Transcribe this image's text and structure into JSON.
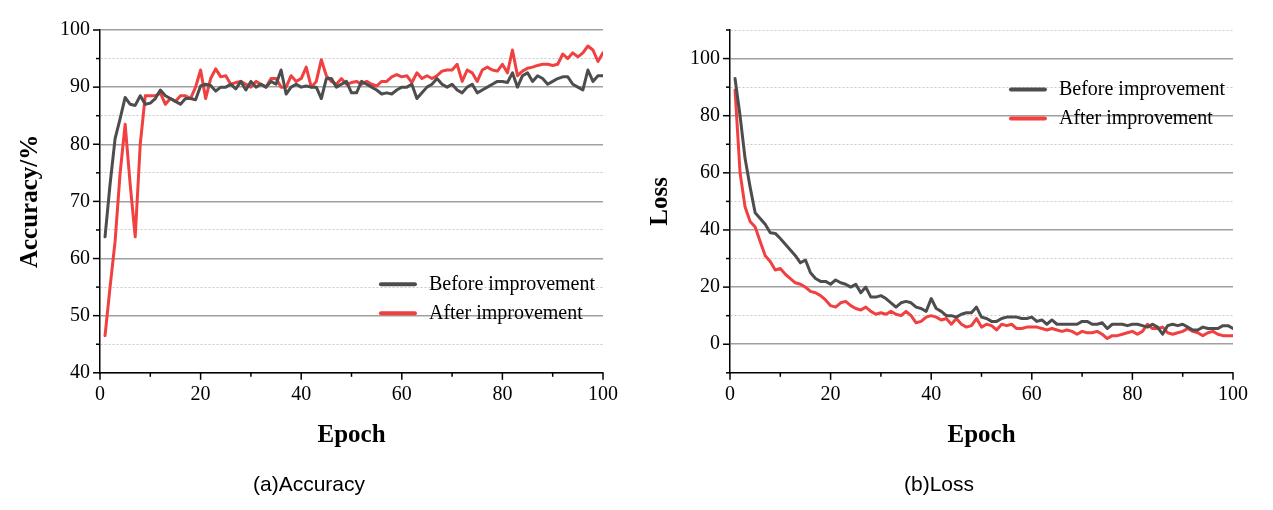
{
  "chart_data": [
    {
      "type": "line",
      "title": "(a)Accuracy",
      "xlabel": "Epoch",
      "ylabel": "Accuracy/%",
      "x": [
        1,
        2,
        3,
        4,
        5,
        6,
        7,
        8,
        9,
        10,
        11,
        12,
        13,
        14,
        15,
        16,
        17,
        18,
        19,
        20,
        21,
        22,
        23,
        24,
        25,
        26,
        27,
        28,
        29,
        30,
        31,
        32,
        33,
        34,
        35,
        36,
        37,
        38,
        39,
        40,
        41,
        42,
        43,
        44,
        45,
        46,
        47,
        48,
        49,
        50,
        51,
        52,
        53,
        54,
        55,
        56,
        57,
        58,
        59,
        60,
        61,
        62,
        63,
        64,
        65,
        66,
        67,
        68,
        69,
        70,
        71,
        72,
        73,
        74,
        75,
        76,
        77,
        78,
        79,
        80,
        81,
        82,
        83,
        84,
        85,
        86,
        87,
        88,
        89,
        90,
        91,
        92,
        93,
        94,
        95,
        96,
        97,
        98,
        99,
        100
      ],
      "series": [
        {
          "name": "Before improvement",
          "color": "#4d4d4d",
          "values": [
            63.8,
            73,
            81,
            84.5,
            88.2,
            87,
            86.8,
            88.5,
            87,
            87.2,
            88,
            89.5,
            88.5,
            88,
            87.5,
            87,
            88,
            88,
            87.8,
            90.2,
            90.5,
            90.3,
            89.3,
            90,
            90,
            90.5,
            89.7,
            91,
            89.5,
            91,
            90,
            90.5,
            90,
            91,
            90.5,
            93,
            88.8,
            90,
            90.5,
            90,
            90.2,
            90,
            90,
            88,
            91.5,
            91.5,
            90,
            90.5,
            91,
            89,
            89,
            91,
            90.5,
            90,
            89.5,
            88.8,
            89,
            88.8,
            89.5,
            90,
            90,
            90.5,
            88,
            89,
            90,
            90.5,
            91.5,
            90.5,
            90,
            90.5,
            89.5,
            89,
            90,
            90.5,
            89,
            89.5,
            90,
            90.5,
            91,
            91,
            90.8,
            92.5,
            90,
            92,
            92.5,
            91,
            92,
            91.5,
            90.5,
            91,
            91.5,
            91.8,
            91.8,
            90.5,
            90,
            89.5,
            93,
            91,
            92,
            92
          ]
        },
        {
          "name": "After improvement",
          "color": "#f04040",
          "values": [
            46.5,
            55,
            63,
            75,
            83.5,
            73,
            63.8,
            80,
            88.5,
            88.5,
            88.5,
            89,
            87,
            88,
            87.5,
            88.5,
            88.5,
            88,
            90,
            93,
            88,
            91.5,
            93.2,
            91.8,
            92,
            90.5,
            90.8,
            91,
            90.5,
            90,
            91,
            90.5,
            90,
            91.5,
            91.5,
            90,
            90,
            92,
            91,
            91.5,
            93.5,
            90,
            91,
            94.8,
            92,
            91,
            90.5,
            91.5,
            90.5,
            90.8,
            91,
            90.5,
            91,
            90.5,
            90.2,
            91,
            91,
            91.8,
            92.2,
            91.8,
            92,
            90.8,
            92.5,
            91.5,
            92,
            91.5,
            92,
            92.8,
            93,
            93,
            94,
            91,
            93,
            92.5,
            91,
            93,
            93.5,
            93,
            92.8,
            94,
            92.5,
            96.5,
            92,
            92.8,
            93.3,
            93.5,
            93.8,
            94,
            94,
            93.8,
            94,
            95.8,
            95,
            96,
            95.3,
            96,
            97.2,
            96.5,
            94.5,
            96
          ]
        }
      ],
      "xlim": [
        0,
        100
      ],
      "xticks": [
        0,
        {
          "value": 10,
          "label": null
        },
        20,
        {
          "value": 30,
          "label": null
        },
        40,
        {
          "value": 50,
          "label": null
        },
        60,
        {
          "value": 70,
          "label": null
        },
        80,
        {
          "value": 90,
          "label": null
        },
        100
      ],
      "ylim": [
        40,
        100
      ],
      "yticks": [
        40,
        {
          "value": 45,
          "label": null
        },
        50,
        {
          "value": 55,
          "label": null
        },
        60,
        {
          "value": 65,
          "label": null
        },
        70,
        {
          "value": 75,
          "label": null
        },
        80,
        {
          "value": 85,
          "label": null
        },
        90,
        {
          "value": 95,
          "label": null
        },
        100
      ],
      "grid": "y",
      "legend": "bottom right",
      "marker": "none",
      "line_style": "solid"
    },
    {
      "type": "line",
      "title": "(b)Loss",
      "xlabel": "Epoch",
      "ylabel": "Loss",
      "x": [
        1,
        2,
        3,
        4,
        5,
        6,
        7,
        8,
        9,
        10,
        11,
        12,
        13,
        14,
        15,
        16,
        17,
        18,
        19,
        20,
        21,
        22,
        23,
        24,
        25,
        26,
        27,
        28,
        29,
        30,
        31,
        32,
        33,
        34,
        35,
        36,
        37,
        38,
        39,
        40,
        41,
        42,
        43,
        44,
        45,
        46,
        47,
        48,
        49,
        50,
        51,
        52,
        53,
        54,
        55,
        56,
        57,
        58,
        59,
        60,
        61,
        62,
        63,
        64,
        65,
        66,
        67,
        68,
        69,
        70,
        71,
        72,
        73,
        74,
        75,
        76,
        77,
        78,
        79,
        80,
        81,
        82,
        83,
        84,
        85,
        86,
        87,
        88,
        89,
        90,
        91,
        92,
        93,
        94,
        95,
        96,
        97,
        98,
        99,
        100
      ],
      "series": [
        {
          "name": "Before improvement",
          "color": "#4d4d4d",
          "values": [
            93,
            80,
            65,
            55,
            46,
            44,
            42,
            39,
            38.8,
            37,
            35,
            33,
            31,
            28.5,
            29.5,
            25,
            23,
            22,
            22,
            21,
            22.5,
            21.5,
            21,
            20,
            21,
            18,
            20,
            16.5,
            16.5,
            17,
            16,
            14.5,
            13,
            14.5,
            15,
            14.5,
            13,
            12.5,
            11.5,
            16,
            12.5,
            11.5,
            10,
            10,
            9.5,
            10.5,
            11,
            11,
            13,
            9.5,
            9,
            8,
            8,
            9,
            9.5,
            9.5,
            9.5,
            9,
            9,
            9.5,
            8,
            8.5,
            7,
            8.5,
            7,
            7,
            7,
            7,
            7,
            8,
            8,
            7,
            7,
            7.5,
            5.5,
            7,
            7,
            7,
            6.5,
            7,
            7,
            6.5,
            6,
            7,
            6,
            3.5,
            6.5,
            7,
            6.5,
            7,
            6,
            5,
            5,
            6,
            5.5,
            5.5,
            5.5,
            6.5,
            6.5,
            5.5
          ]
        },
        {
          "name": "After improvement",
          "color": "#f04040",
          "values": [
            89,
            60,
            48,
            43,
            41,
            36,
            31,
            29,
            26,
            26.5,
            24.5,
            23,
            21.5,
            21,
            20,
            18.5,
            18,
            17,
            15.5,
            13.5,
            13,
            14.5,
            15,
            13.5,
            12.5,
            12,
            13,
            11.5,
            10.5,
            11,
            10.5,
            11.5,
            10.5,
            10,
            11.5,
            10,
            7.5,
            8,
            9.5,
            10,
            9.5,
            8.5,
            9,
            7,
            9,
            7,
            6,
            6.5,
            9,
            6,
            7,
            6.5,
            5,
            7,
            6.5,
            7,
            5.5,
            5.5,
            6,
            6,
            6,
            5.5,
            5,
            5.5,
            5,
            4.5,
            5,
            4.5,
            3.5,
            4.5,
            4,
            4,
            4.5,
            3.5,
            2,
            3,
            3,
            3.5,
            4,
            4.5,
            3.5,
            4.5,
            7,
            5.5,
            5.5,
            6,
            4,
            3.5,
            4,
            4.5,
            5.5,
            4.5,
            4,
            3,
            4,
            4.5,
            3.5,
            3,
            3,
            3
          ]
        }
      ],
      "xlim": [
        0,
        100
      ],
      "xticks": [
        0,
        {
          "value": 10,
          "label": null
        },
        20,
        {
          "value": 30,
          "label": null
        },
        40,
        {
          "value": 50,
          "label": null
        },
        60,
        {
          "value": 70,
          "label": null
        },
        80,
        {
          "value": 90,
          "label": null
        },
        100
      ],
      "ylim": [
        -10,
        110
      ],
      "yticks": [
        {
          "value": -10,
          "label": null
        },
        0,
        {
          "value": 10,
          "label": null
        },
        20,
        {
          "value": 30,
          "label": null
        },
        40,
        {
          "value": 50,
          "label": null
        },
        60,
        {
          "value": 70,
          "label": null
        },
        80,
        {
          "value": 90,
          "label": null
        },
        100,
        {
          "value": 110,
          "label": null
        }
      ],
      "grid": "y",
      "legend": "top right",
      "marker": "none",
      "line_style": "solid"
    }
  ]
}
